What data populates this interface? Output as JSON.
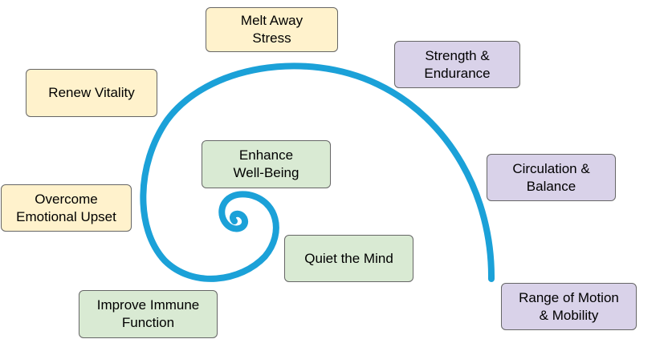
{
  "spiral": {
    "color": "#1ba1d8"
  },
  "colors": {
    "yellow": "#fff2cc",
    "purple": "#d9d2e9",
    "green": "#d9ead3",
    "border": "#666666"
  },
  "nodes": {
    "melt_away_stress": "Melt Away\nStress",
    "strength_endurance": "Strength &\nEndurance",
    "renew_vitality": "Renew Vitality",
    "circulation_balance": "Circulation &\nBalance",
    "enhance_well_being": "Enhance\nWell-Being",
    "overcome_emotional_upset": "Overcome\nEmotional Upset",
    "quiet_the_mind": "Quiet the Mind",
    "range_of_motion_mobility": "Range of Motion\n& Mobility",
    "improve_immune_function": "Improve Immune\nFunction"
  }
}
